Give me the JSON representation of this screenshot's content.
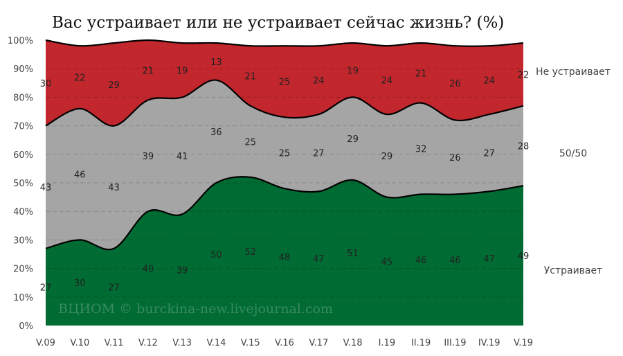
{
  "chart_data": {
    "type": "area",
    "stacked": true,
    "percent": true,
    "title": "Вас устраивает или не устраивает сейчас жизнь? (%)",
    "categories": [
      "V.09",
      "V.10",
      "V.11",
      "V.12",
      "V.13",
      "V.14",
      "V.15",
      "V.16",
      "V.17",
      "V.18",
      "I.19",
      "II.19",
      "III.19",
      "IV.19",
      "V.19"
    ],
    "series": [
      {
        "name": "Устраивает",
        "color": "#006b33",
        "values": [
          27,
          30,
          27,
          40,
          39,
          50,
          52,
          48,
          47,
          51,
          45,
          46,
          46,
          47,
          49
        ]
      },
      {
        "name": "50/50",
        "color": "#a5a5a5",
        "values": [
          43,
          46,
          43,
          39,
          41,
          36,
          25,
          25,
          27,
          29,
          29,
          32,
          26,
          27,
          28
        ]
      },
      {
        "name": "Не устраивает",
        "color": "#c1272d",
        "values": [
          30,
          22,
          29,
          21,
          19,
          13,
          21,
          25,
          24,
          19,
          24,
          21,
          26,
          24,
          22
        ]
      }
    ],
    "ylim": [
      0,
      100
    ],
    "yticks": [
      "0%",
      "10%",
      "20%",
      "30%",
      "40%",
      "50%",
      "60%",
      "70%",
      "80%",
      "90%",
      "100%"
    ],
    "grid": true,
    "legend_position": "right",
    "watermark": "ВЦИОМ © burckina-new.livejournal.com"
  }
}
